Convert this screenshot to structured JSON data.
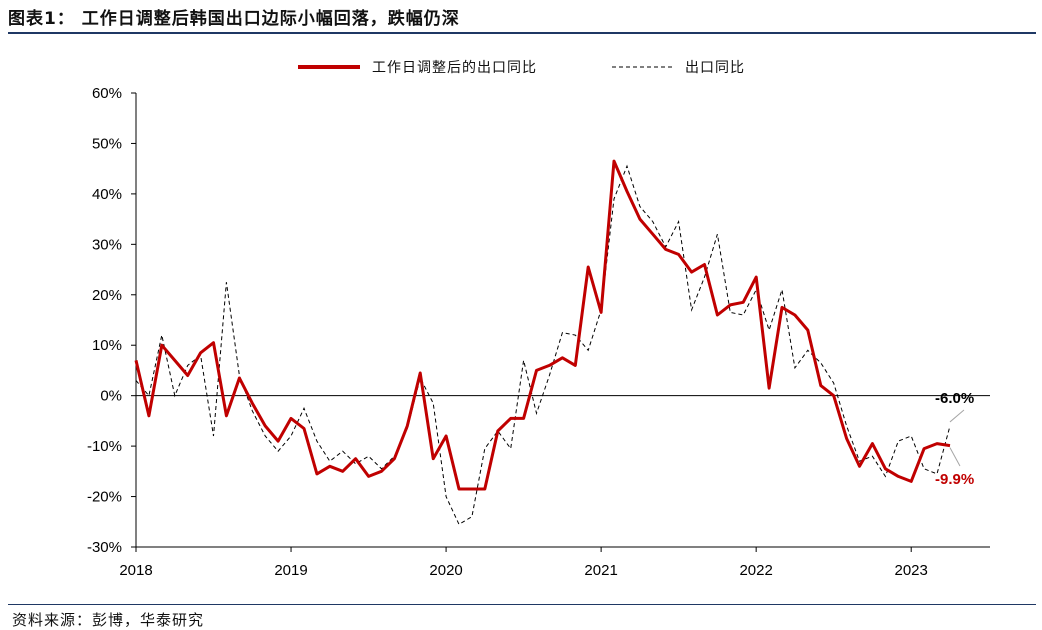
{
  "header": {
    "title": "图表1：  工作日调整后韩国出口边际小幅回落，跌幅仍深"
  },
  "footer": {
    "source": "资料来源：彭博，华泰研究"
  },
  "colors": {
    "adjusted": "#c00000",
    "raw": "#000000",
    "annotation_line": "#a6a6a6",
    "rule": "#1f3864"
  },
  "chart_data": {
    "type": "line",
    "title": "",
    "xlabel": "",
    "ylabel": "",
    "ylim": [
      -30,
      60
    ],
    "yticks": [
      -30,
      -20,
      -10,
      0,
      10,
      20,
      30,
      40,
      50,
      60
    ],
    "ytick_labels": [
      "-30%",
      "-20%",
      "-10%",
      "0%",
      "10%",
      "20%",
      "30%",
      "40%",
      "50%",
      "60%"
    ],
    "xticks": [
      "2018",
      "2019",
      "2020",
      "2021",
      "2022",
      "2023"
    ],
    "legend_position": "top-center",
    "grid": false,
    "x_start": "2018-01",
    "series": [
      {
        "name": "工作日调整后的出口同比",
        "style": "solid",
        "values": [
          7,
          -4,
          10,
          7,
          4,
          8.5,
          10.5,
          -4,
          3.5,
          -1.5,
          -6,
          -9,
          -4.5,
          -6.5,
          -15.5,
          -14,
          -15,
          -12.5,
          -16,
          -15,
          -12.5,
          -6,
          4.5,
          -12.5,
          -8,
          -18.5,
          -18.5,
          -18.5,
          -7,
          -4.5,
          -4.5,
          5,
          6,
          7.5,
          6,
          25.5,
          16.5,
          46.5,
          40.5,
          35,
          32,
          29,
          28,
          24.5,
          26,
          16,
          18,
          18.5,
          23.5,
          1.5,
          17.5,
          16,
          13,
          2,
          0,
          -8.5,
          -14,
          -9.5,
          -14.5,
          -16,
          -17,
          -10.5,
          -9.5,
          -9.9
        ]
      },
      {
        "name": "出口同比",
        "style": "dashed",
        "values": [
          3,
          0,
          12,
          0,
          6,
          8,
          -8,
          22.5,
          4,
          -3,
          -8,
          -11,
          -8,
          -2.5,
          -9,
          -13,
          -11,
          -13.5,
          -12,
          -14.5,
          -12,
          -6.5,
          3.5,
          -1.5,
          -20,
          -25.5,
          -24,
          -10.5,
          -7,
          -10.5,
          7,
          -3.5,
          4,
          12.5,
          12,
          9,
          17,
          39,
          45.5,
          37.5,
          34.5,
          29.5,
          34.5,
          17,
          23.5,
          32,
          16.5,
          16,
          21,
          13,
          21,
          5.5,
          9,
          6.5,
          2.5,
          -6,
          -13,
          -12,
          -16,
          -9,
          -8,
          -14.5,
          -15.5,
          -6.0
        ]
      }
    ],
    "annotations": [
      {
        "series": "出口同比",
        "label": "-6.0%"
      },
      {
        "series": "工作日调整后的出口同比",
        "label": "-9.9%"
      }
    ]
  }
}
